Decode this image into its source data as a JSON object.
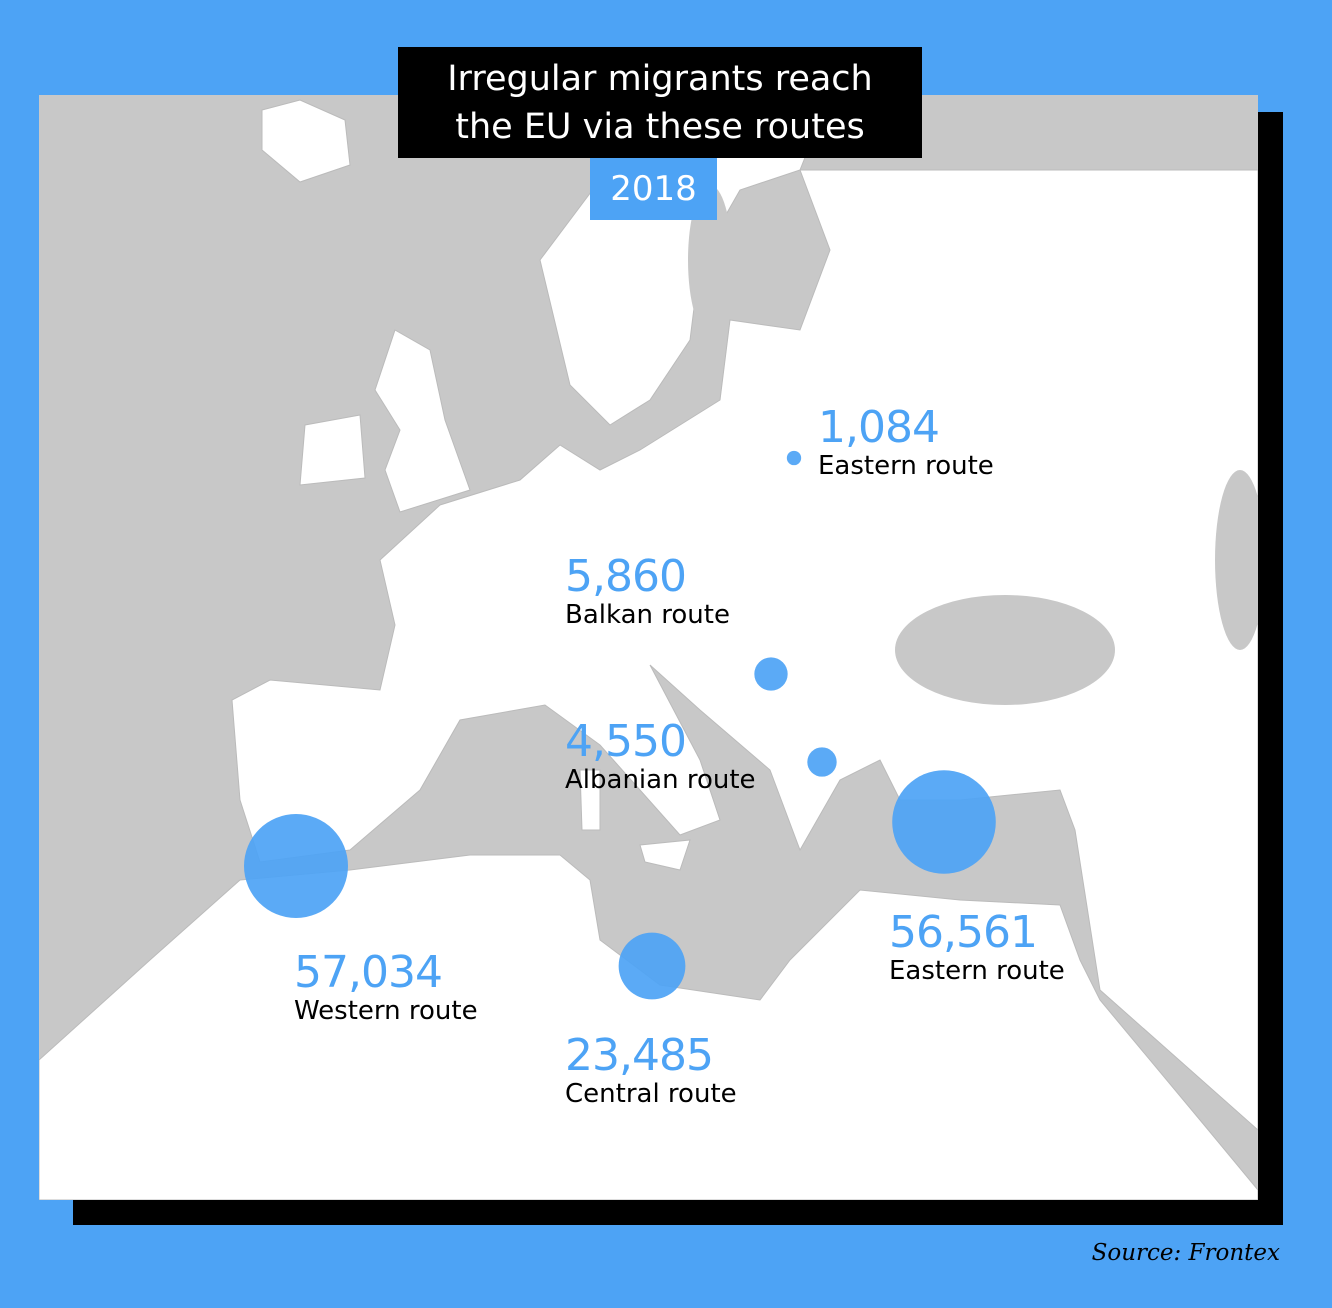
{
  "title": {
    "line1": "Irregular migrants reach",
    "line2": "the EU via these routes"
  },
  "year": "2018",
  "colors": {
    "background": "#4da3f5",
    "sea": "#c8c8c8",
    "land": "#ffffff",
    "bubble": "#4da3f5",
    "title_bg": "#000000"
  },
  "routes": [
    {
      "value": 1084,
      "value_label": "1,084",
      "name": "Eastern route"
    },
    {
      "value": 5860,
      "value_label": "5,860",
      "name": "Balkan route"
    },
    {
      "value": 4550,
      "value_label": "4,550",
      "name": "Albanian route"
    },
    {
      "value": 57034,
      "value_label": "57,034",
      "name": "Western route"
    },
    {
      "value": 23485,
      "value_label": "23,485",
      "name": "Central route"
    },
    {
      "value": 56561,
      "value_label": "56,561",
      "name": "Eastern route"
    }
  ],
  "source": "Source: Frontex"
}
